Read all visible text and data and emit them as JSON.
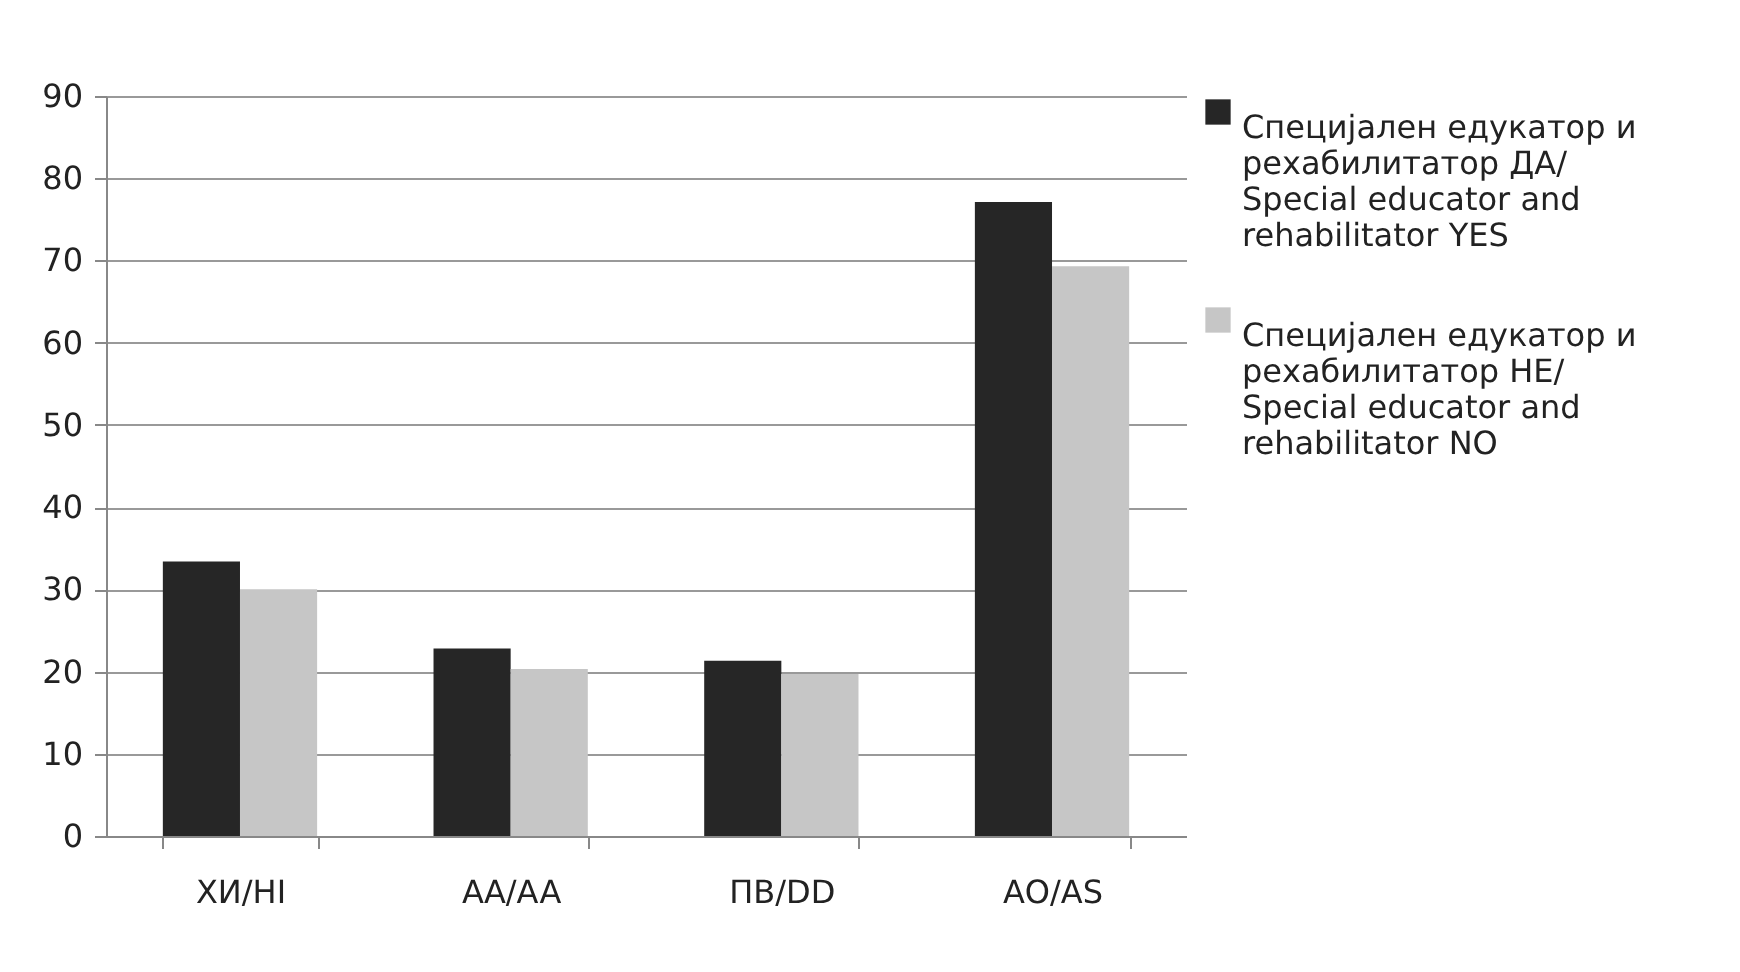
{
  "chart_data": {
    "type": "bar",
    "categories": [
      "ХИ/HI",
      "АА/AA",
      "ПВ/DD",
      "АО/AS"
    ],
    "series": [
      {
        "name": "Специјален едукатор и рехабилитатор ДА/ Special educator and rehabilitator YES",
        "color": "#262626",
        "values": [
          33.4,
          22.8,
          21.3,
          77.1
        ]
      },
      {
        "name": "Специјален едукатор и рехабилитатор НЕ/ Special educator and rehabilitator NO",
        "color": "#c6c6c6",
        "values": [
          30.0,
          20.3,
          19.7,
          69.3
        ]
      }
    ],
    "ylim": [
      0,
      90
    ],
    "yticks": [
      0,
      10,
      20,
      30,
      40,
      50,
      60,
      70,
      80,
      90
    ],
    "grid": "y",
    "legend": "right"
  }
}
